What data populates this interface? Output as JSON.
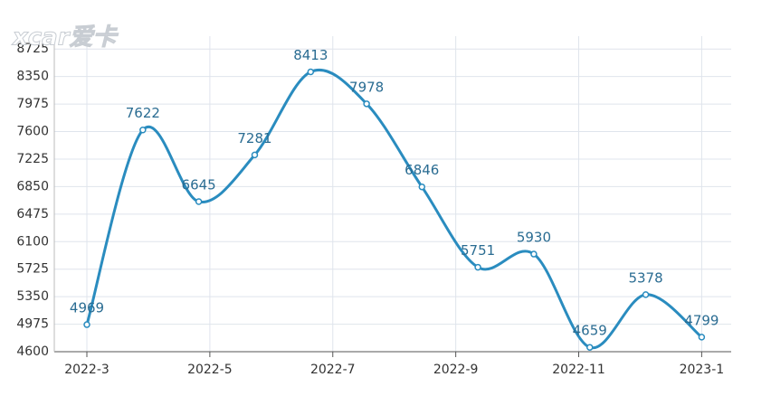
{
  "chart_data": {
    "type": "line",
    "logo": "xcar爱卡",
    "x": [
      0,
      0.91,
      1.82,
      2.73,
      3.64,
      4.55,
      5.45,
      6.36,
      7.27,
      8.18,
      9.09,
      10
    ],
    "series": [
      {
        "name": null,
        "color": "#2a8cbf",
        "values": [
          4969,
          7622,
          6645,
          7281,
          8413,
          7978,
          6846,
          5751,
          5930,
          4659,
          5378,
          4799
        ]
      }
    ],
    "xlim": [
      -0.53,
      10.48
    ],
    "xticks": [
      {
        "value": 0,
        "label": "2022-3"
      },
      {
        "value": 2,
        "label": "2022-5"
      },
      {
        "value": 4,
        "label": "2022-7"
      },
      {
        "value": 6,
        "label": "2022-9"
      },
      {
        "value": 8,
        "label": "2022-11"
      },
      {
        "value": 10,
        "label": "2023-1"
      }
    ],
    "ylim": [
      4600,
      8900
    ],
    "yticks": [
      4600,
      4975,
      5350,
      5725,
      6100,
      6475,
      6850,
      7225,
      7600,
      7975,
      8350,
      8725
    ],
    "grid": true
  }
}
